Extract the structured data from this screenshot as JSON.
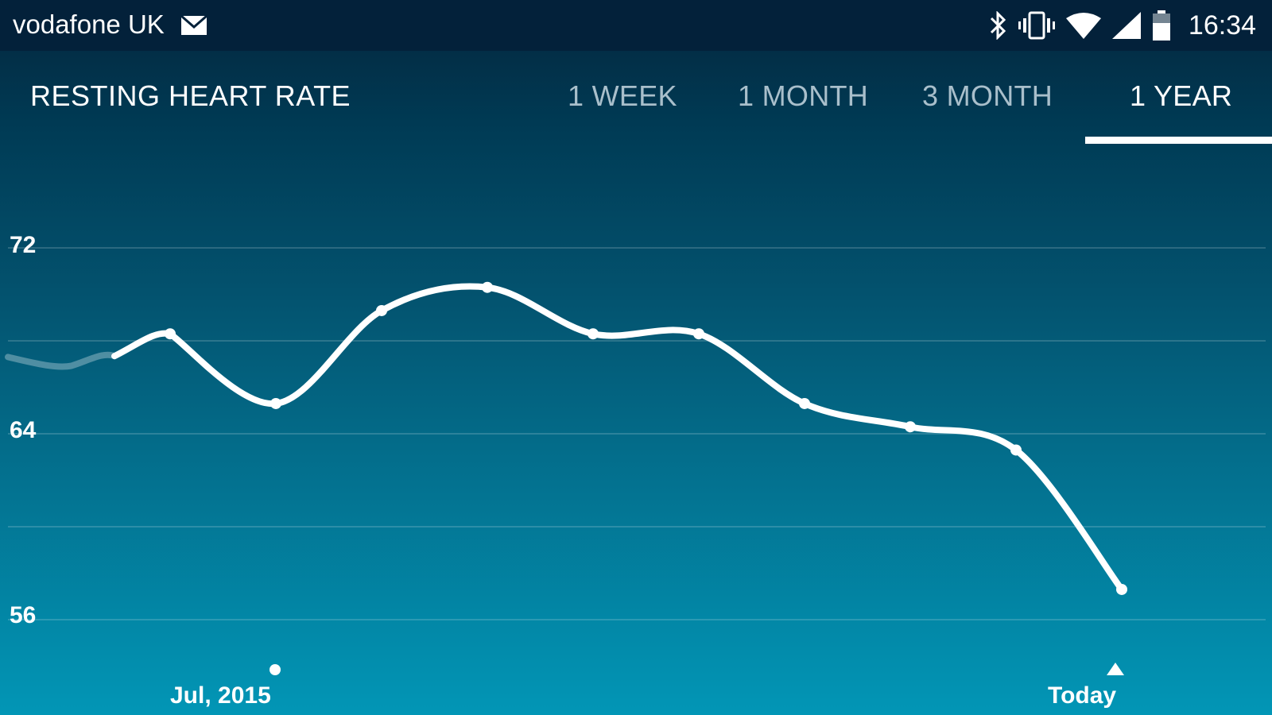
{
  "status_bar": {
    "carrier": "vodafone UK",
    "time": "16:34",
    "icons": [
      "mail-icon",
      "bluetooth-icon",
      "vibrate-icon",
      "wifi-icon",
      "signal-icon",
      "battery-icon"
    ]
  },
  "header": {
    "title": "RESTING HEART RATE",
    "tabs": [
      {
        "label": "1 WEEK",
        "active": false
      },
      {
        "label": "1 MONTH",
        "active": false
      },
      {
        "label": "3 MONTH",
        "active": false
      },
      {
        "label": "1 YEAR",
        "active": true
      }
    ]
  },
  "chart_data": {
    "type": "line",
    "ylim": [
      56,
      72
    ],
    "yticks": [
      "72",
      "64",
      "56"
    ],
    "x_labels": [
      "Jul, 2015",
      "Today"
    ],
    "grid": true,
    "series": [
      {
        "values": [
          68.3,
          65.3,
          69.3,
          70.3,
          68.3,
          68.3,
          65.3,
          64.3,
          63.3,
          57.3
        ],
        "leading_value": 67.2
      }
    ],
    "line_color": "#ffffff"
  }
}
